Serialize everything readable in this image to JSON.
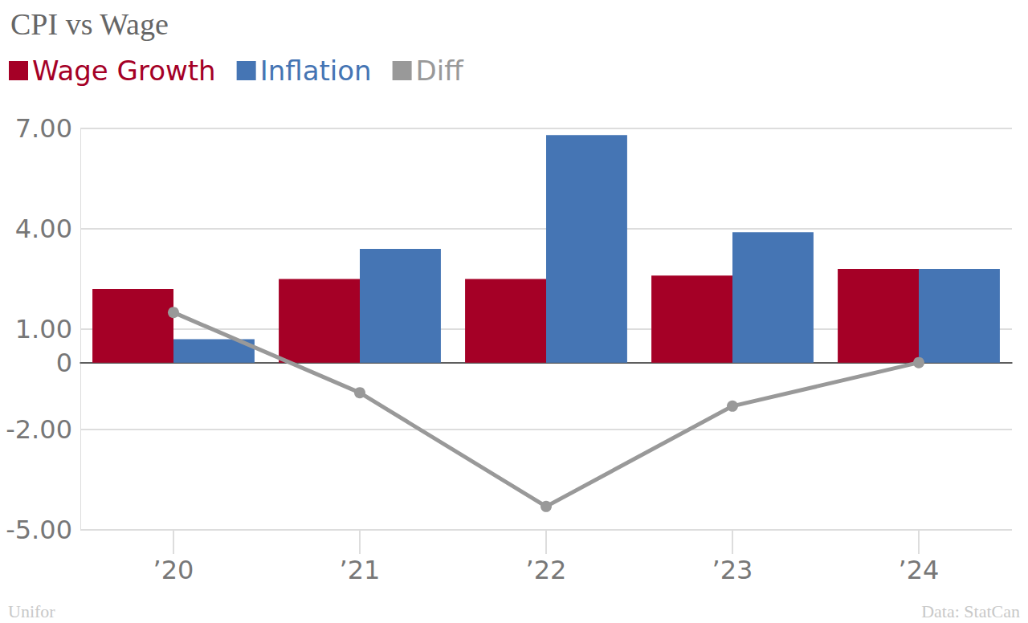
{
  "chart_data": {
    "type": "bar",
    "title": "CPI vs Wage",
    "categories": [
      "’20",
      "’21",
      "’22",
      "’23",
      "’24"
    ],
    "series": [
      {
        "name": "Wage Growth",
        "type": "bar",
        "color": "#a50026",
        "values": [
          2.2,
          2.5,
          2.5,
          2.6,
          2.8
        ]
      },
      {
        "name": "Inflation",
        "type": "bar",
        "color": "#4575b4",
        "values": [
          0.7,
          3.4,
          6.8,
          3.9,
          2.8
        ]
      },
      {
        "name": "Diff",
        "type": "line",
        "color": "#999999",
        "marker": "circle",
        "line_style": "solid",
        "values": [
          1.5,
          -0.9,
          -4.3,
          -1.3,
          0.0
        ]
      }
    ],
    "ylim": [
      -5,
      7
    ],
    "yticks": [
      {
        "value": -5,
        "label": "-5.00"
      },
      {
        "value": -2,
        "label": "-2.00"
      },
      0,
      {
        "value": 1,
        "label": "1.00"
      },
      {
        "value": 4,
        "label": "4.00"
      },
      {
        "value": 7,
        "label": "7.00"
      }
    ],
    "grid": true,
    "legend": "top-left",
    "annotations": [
      "Unifor",
      "Data: StatCan"
    ]
  }
}
